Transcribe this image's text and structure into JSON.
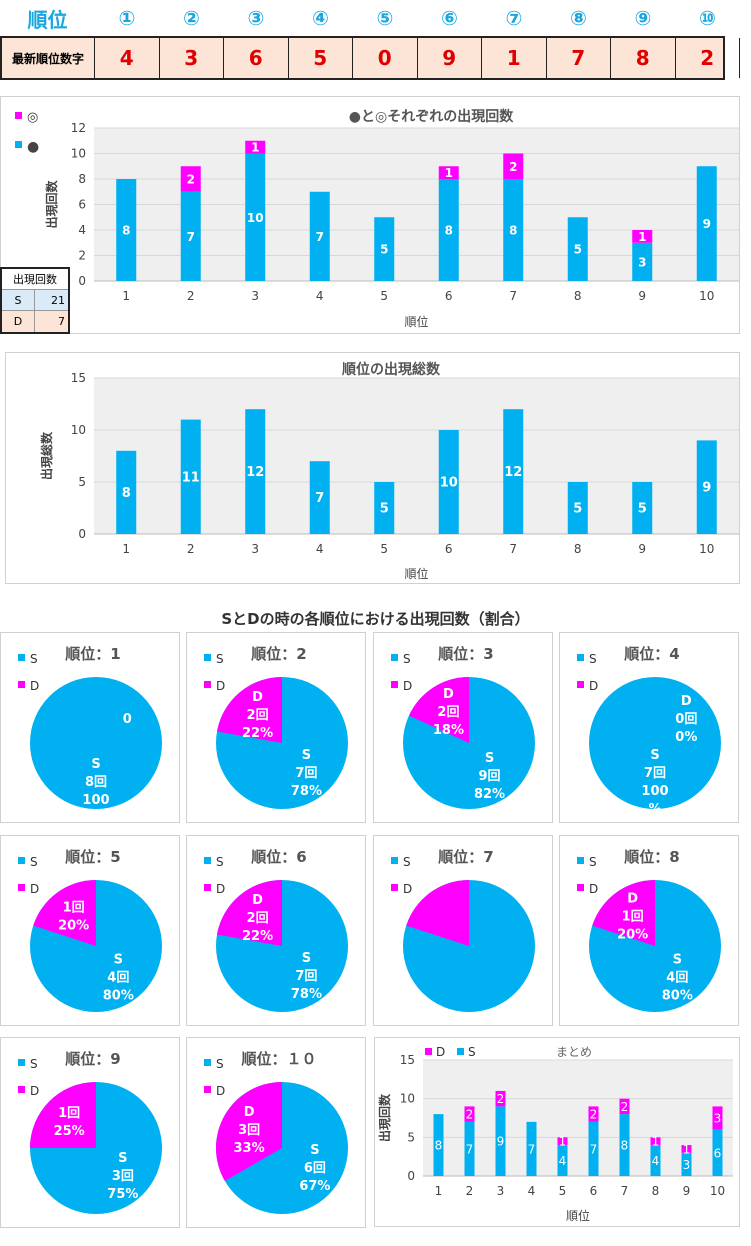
{
  "header": {
    "title": "順位",
    "positions": [
      "①",
      "②",
      "③",
      "④",
      "⑤",
      "⑥",
      "⑦",
      "⑧",
      "⑨",
      "⑩"
    ],
    "row_label": "最新順位数字",
    "digits": [
      "4",
      "3",
      "6",
      "5",
      "0",
      "9",
      "1",
      "7",
      "8",
      "2"
    ]
  },
  "colors": {
    "s": "#00b0f0",
    "d": "#ff00ff",
    "digit": "#e00000",
    "accent": "#1aa7e0"
  },
  "sd_table": {
    "header": "出現回数",
    "rows": [
      {
        "key": "S",
        "value": "21"
      },
      {
        "key": "D",
        "value": "7"
      }
    ]
  },
  "chart_data": [
    {
      "id": "stacked",
      "type": "bar",
      "title": "●と◎それぞれの出現回数",
      "legend": [
        "◎",
        "●"
      ],
      "xlabel": "順位",
      "ylabel": "出現回数",
      "ylim": [
        0,
        12
      ],
      "yticks": [
        "0",
        "2",
        "4",
        "6",
        "8",
        "10",
        "12"
      ],
      "categories": [
        "1",
        "2",
        "3",
        "4",
        "5",
        "6",
        "7",
        "8",
        "9",
        "10"
      ],
      "series": [
        {
          "name": "●",
          "values": [
            8,
            7,
            10,
            7,
            5,
            8,
            8,
            5,
            3,
            9
          ]
        },
        {
          "name": "◎",
          "values": [
            0,
            2,
            1,
            0,
            0,
            1,
            2,
            0,
            1,
            0
          ]
        }
      ]
    },
    {
      "id": "total",
      "type": "bar",
      "title": "順位の出現総数",
      "xlabel": "順位",
      "ylabel": "出現総数",
      "ylim": [
        0,
        15
      ],
      "yticks": [
        "0",
        "5",
        "10",
        "15"
      ],
      "categories": [
        "1",
        "2",
        "3",
        "4",
        "5",
        "6",
        "7",
        "8",
        "9",
        "10"
      ],
      "values": [
        8,
        11,
        12,
        7,
        5,
        10,
        12,
        5,
        5,
        9
      ]
    },
    {
      "id": "pies",
      "type": "pie",
      "title": "SとDの時の各順位における出現回数（割合）",
      "legend": [
        "S",
        "D"
      ],
      "items": [
        {
          "title": "順位：1",
          "s": 8,
          "d": 0,
          "s_label": [
            "S",
            "8回",
            "100"
          ],
          "d_label": [
            "0"
          ]
        },
        {
          "title": "順位：2",
          "s": 7,
          "d": 2,
          "s_label": [
            "S",
            "7回",
            "78%"
          ],
          "d_label": [
            "D",
            "2回",
            "22%"
          ]
        },
        {
          "title": "順位：3",
          "s": 9,
          "d": 2,
          "s_label": [
            "S",
            "9回",
            "82%"
          ],
          "d_label": [
            "D",
            "2回",
            "18%"
          ]
        },
        {
          "title": "順位：4",
          "s": 7,
          "d": 0,
          "s_label": [
            "S",
            "7回",
            "100",
            "%"
          ],
          "d_label": [
            "D",
            "0回",
            "0%"
          ]
        },
        {
          "title": "順位：5",
          "s": 4,
          "d": 1,
          "s_label": [
            "S",
            "4回",
            "80%"
          ],
          "d_label": [
            "1回",
            "20%"
          ]
        },
        {
          "title": "順位：6",
          "s": 7,
          "d": 2,
          "s_label": [
            "S",
            "7回",
            "78%"
          ],
          "d_label": [
            "D",
            "2回",
            "22%"
          ]
        },
        {
          "title": "順位：7",
          "s": 10,
          "d": 2.5,
          "s_label": [],
          "d_label": []
        },
        {
          "title": "順位：8",
          "s": 4,
          "d": 1,
          "s_label": [
            "S",
            "4回",
            "80%"
          ],
          "d_label": [
            "D",
            "1回",
            "20%"
          ]
        },
        {
          "title": "順位：9",
          "s": 3,
          "d": 1,
          "s_label": [
            "S",
            "3回",
            "75%"
          ],
          "d_label": [
            "1回",
            "25%"
          ]
        },
        {
          "title": "順位：１０",
          "s": 6,
          "d": 3,
          "s_label": [
            "S",
            "6回",
            "67%"
          ],
          "d_label": [
            "D",
            "3回",
            "33%"
          ]
        }
      ]
    },
    {
      "id": "summary",
      "type": "bar",
      "title": "まとめ",
      "legend": [
        "D",
        "S"
      ],
      "xlabel": "順位",
      "ylabel": "出現回数",
      "ylim": [
        0,
        15
      ],
      "yticks": [
        "0",
        "5",
        "10",
        "15"
      ],
      "categories": [
        "1",
        "2",
        "3",
        "4",
        "5",
        "6",
        "7",
        "8",
        "9",
        "10"
      ],
      "series": [
        {
          "name": "S",
          "values": [
            8,
            7,
            9,
            7,
            4,
            7,
            8,
            4,
            3,
            6
          ]
        },
        {
          "name": "D",
          "values": [
            0,
            2,
            2,
            0,
            1,
            2,
            2,
            1,
            1,
            3
          ]
        }
      ]
    }
  ]
}
